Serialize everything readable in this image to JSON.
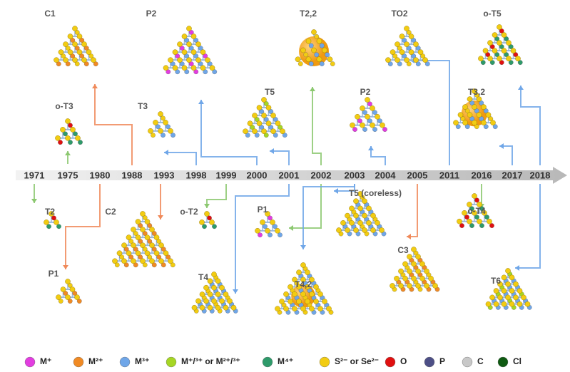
{
  "timeline": {
    "years": [
      "1971",
      "1975",
      "1980",
      "1988",
      "1993",
      "1998",
      "1999",
      "2000",
      "2001",
      "2002",
      "2003",
      "2004",
      "2005",
      "2011",
      "2016",
      "2017",
      "2018"
    ]
  },
  "structures": [
    {
      "label": "C1"
    },
    {
      "label": "P2"
    },
    {
      "label": "T2,2"
    },
    {
      "label": "TO2"
    },
    {
      "label": "o-T5"
    },
    {
      "label": "o-T3"
    },
    {
      "label": "T3"
    },
    {
      "label": "T5"
    },
    {
      "label": "P2"
    },
    {
      "label": "T3,2"
    },
    {
      "label": "T2"
    },
    {
      "label": "C2"
    },
    {
      "label": "o-T2"
    },
    {
      "label": "P1"
    },
    {
      "label": "T5 (coreless)"
    },
    {
      "label": "o-T4"
    },
    {
      "label": "P1"
    },
    {
      "label": "T4"
    },
    {
      "label": "T4,2"
    },
    {
      "label": "C3"
    },
    {
      "label": "T6"
    }
  ],
  "legend": [
    {
      "label": "M⁺",
      "color": "#e23de0"
    },
    {
      "label": "M²⁺",
      "color": "#f08a24"
    },
    {
      "label": "M³⁺",
      "color": "#6fa6e8"
    },
    {
      "label": "M⁺/³⁺ or M²⁺/³⁺",
      "color": "#a6d624"
    },
    {
      "label": "M⁴⁺",
      "color": "#2e9a6a"
    },
    {
      "label": "S²⁻ or Se²⁻",
      "color": "#f2cc12"
    },
    {
      "label": "O",
      "color": "#e01010"
    },
    {
      "label": "P",
      "color": "#4d4f86"
    },
    {
      "label": "C",
      "color": "#c8c8c8"
    },
    {
      "label": "Cl",
      "color": "#0f5a12"
    }
  ]
}
